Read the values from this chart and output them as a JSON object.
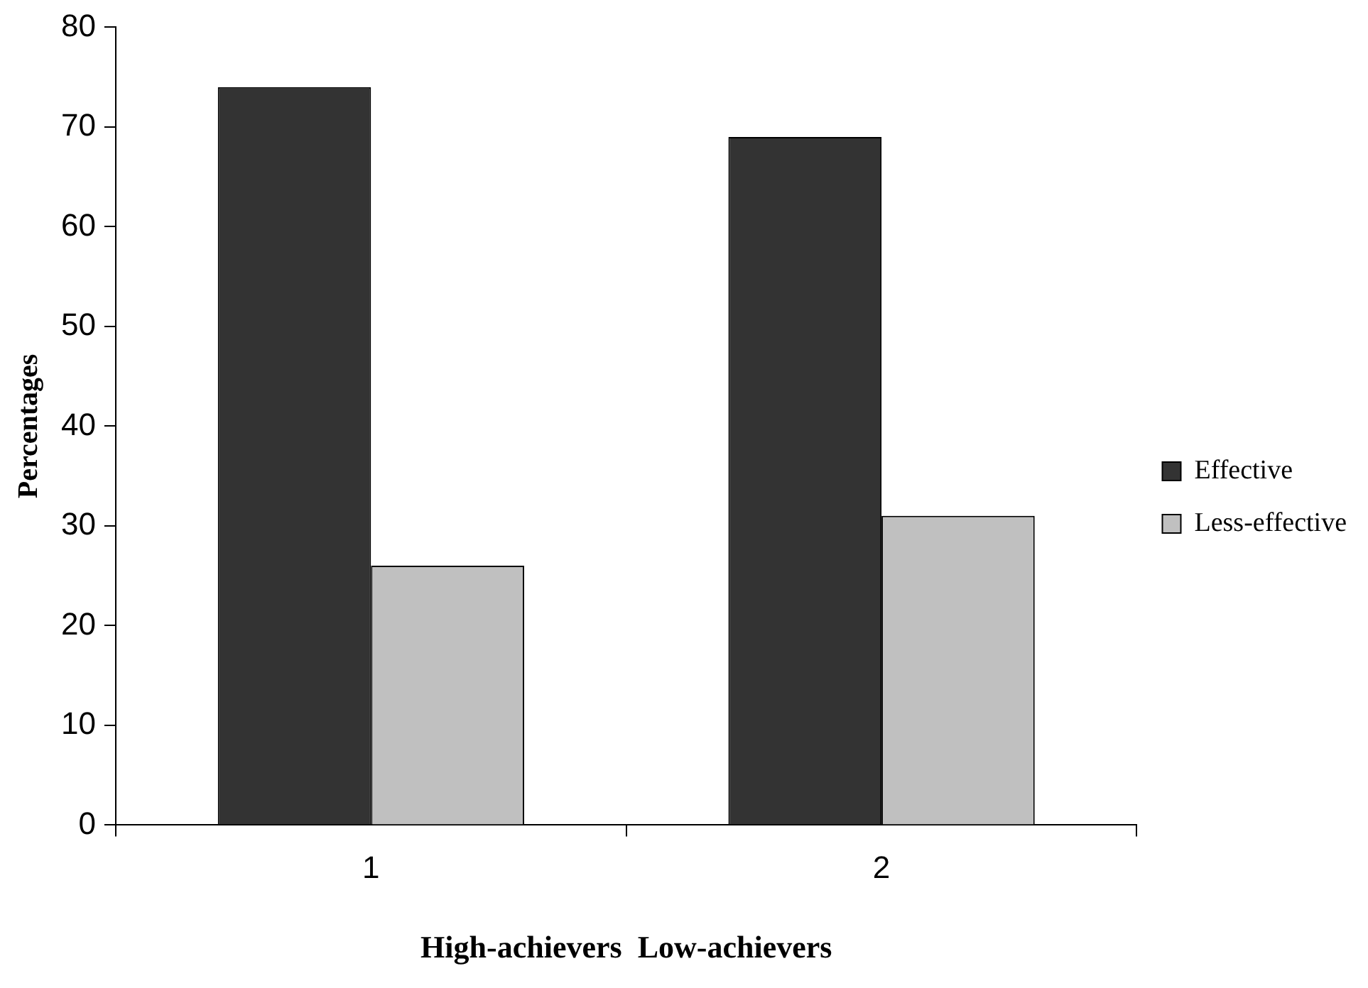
{
  "chart_data": {
    "type": "bar",
    "xlabel": "High-achievers  Low-achievers",
    "ylabel": "Percentages",
    "categories": [
      "1",
      "2"
    ],
    "series": [
      {
        "name": "Effective",
        "color": "#333333",
        "values": [
          74,
          69
        ]
      },
      {
        "name": "Less-effective",
        "color": "#c0c0c0",
        "values": [
          26,
          31
        ]
      }
    ],
    "ylim": [
      0,
      80
    ],
    "yticks": [
      0,
      10,
      20,
      30,
      40,
      50,
      60,
      70,
      80
    ],
    "grid": false,
    "legend": "right"
  }
}
